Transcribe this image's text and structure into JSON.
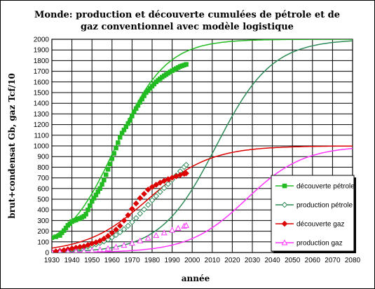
{
  "chart_data": {
    "type": "scatter",
    "title_line1": "Monde: production et découverte cumulées de pétrole et de",
    "title_line2": "gaz conventionnel avec modèle logistique",
    "xlabel": "année",
    "ylabel": "brut+condensat  Gb, gaz  Tcf/10",
    "xlim": [
      1930,
      2080
    ],
    "ylim": [
      0,
      2000
    ],
    "x_ticks": [
      1930,
      1940,
      1950,
      1960,
      1970,
      1980,
      1990,
      2000,
      2010,
      2020,
      2030,
      2040,
      2050,
      2060,
      2070,
      2080
    ],
    "y_ticks": [
      0,
      100,
      200,
      300,
      400,
      500,
      600,
      700,
      800,
      900,
      1000,
      1100,
      1200,
      1300,
      1400,
      1500,
      1600,
      1700,
      1800,
      1900,
      2000
    ],
    "grid": true,
    "legend_position": "right",
    "series": [
      {
        "name": "découverte pétrole",
        "color": "#22bb22",
        "marker": "square-filled",
        "points": [
          [
            1930,
            140
          ],
          [
            1932,
            148
          ],
          [
            1934,
            160
          ],
          [
            1935,
            185
          ],
          [
            1936,
            205
          ],
          [
            1937,
            230
          ],
          [
            1938,
            255
          ],
          [
            1939,
            270
          ],
          [
            1940,
            290
          ],
          [
            1941,
            300
          ],
          [
            1942,
            305
          ],
          [
            1943,
            315
          ],
          [
            1944,
            320
          ],
          [
            1945,
            330
          ],
          [
            1946,
            340
          ],
          [
            1947,
            360
          ],
          [
            1948,
            400
          ],
          [
            1949,
            440
          ],
          [
            1950,
            480
          ],
          [
            1951,
            510
          ],
          [
            1952,
            540
          ],
          [
            1953,
            570
          ],
          [
            1954,
            600
          ],
          [
            1955,
            640
          ],
          [
            1956,
            680
          ],
          [
            1957,
            730
          ],
          [
            1958,
            780
          ],
          [
            1959,
            830
          ],
          [
            1960,
            880
          ],
          [
            1961,
            930
          ],
          [
            1962,
            980
          ],
          [
            1963,
            1030
          ],
          [
            1964,
            1080
          ],
          [
            1965,
            1120
          ],
          [
            1966,
            1150
          ],
          [
            1967,
            1180
          ],
          [
            1968,
            1210
          ],
          [
            1969,
            1240
          ],
          [
            1970,
            1280
          ],
          [
            1971,
            1320
          ],
          [
            1972,
            1350
          ],
          [
            1973,
            1380
          ],
          [
            1974,
            1410
          ],
          [
            1975,
            1440
          ],
          [
            1976,
            1470
          ],
          [
            1977,
            1500
          ],
          [
            1978,
            1520
          ],
          [
            1979,
            1540
          ],
          [
            1980,
            1560
          ],
          [
            1981,
            1580
          ],
          [
            1982,
            1600
          ],
          [
            1983,
            1615
          ],
          [
            1984,
            1630
          ],
          [
            1985,
            1645
          ],
          [
            1986,
            1658
          ],
          [
            1987,
            1670
          ],
          [
            1988,
            1682
          ],
          [
            1989,
            1694
          ],
          [
            1990,
            1705
          ],
          [
            1991,
            1715
          ],
          [
            1992,
            1725
          ],
          [
            1993,
            1735
          ],
          [
            1994,
            1745
          ],
          [
            1995,
            1752
          ],
          [
            1996,
            1758
          ],
          [
            1997,
            1765
          ]
        ]
      },
      {
        "name": "production pétrole",
        "color": "#2e8b57",
        "marker": "diamond-open",
        "points": [
          [
            1930,
            5
          ],
          [
            1932,
            8
          ],
          [
            1934,
            12
          ],
          [
            1936,
            16
          ],
          [
            1938,
            21
          ],
          [
            1940,
            27
          ],
          [
            1942,
            33
          ],
          [
            1944,
            40
          ],
          [
            1946,
            48
          ],
          [
            1948,
            56
          ],
          [
            1950,
            66
          ],
          [
            1952,
            77
          ],
          [
            1954,
            90
          ],
          [
            1956,
            105
          ],
          [
            1958,
            122
          ],
          [
            1960,
            142
          ],
          [
            1962,
            165
          ],
          [
            1964,
            190
          ],
          [
            1966,
            218
          ],
          [
            1968,
            250
          ],
          [
            1970,
            285
          ],
          [
            1972,
            323
          ],
          [
            1974,
            365
          ],
          [
            1976,
            405
          ],
          [
            1978,
            447
          ],
          [
            1980,
            490
          ],
          [
            1982,
            530
          ],
          [
            1984,
            568
          ],
          [
            1986,
            605
          ],
          [
            1988,
            643
          ],
          [
            1990,
            683
          ],
          [
            1992,
            722
          ],
          [
            1994,
            762
          ],
          [
            1996,
            803
          ],
          [
            1997,
            822
          ]
        ]
      },
      {
        "name": "découverte gaz",
        "color": "#dd0000",
        "marker": "diamond-filled",
        "points": [
          [
            1930,
            5
          ],
          [
            1932,
            10
          ],
          [
            1934,
            15
          ],
          [
            1936,
            22
          ],
          [
            1938,
            30
          ],
          [
            1940,
            38
          ],
          [
            1942,
            45
          ],
          [
            1944,
            52
          ],
          [
            1946,
            58
          ],
          [
            1948,
            70
          ],
          [
            1950,
            85
          ],
          [
            1952,
            95
          ],
          [
            1954,
            110
          ],
          [
            1956,
            130
          ],
          [
            1958,
            155
          ],
          [
            1960,
            185
          ],
          [
            1962,
            215
          ],
          [
            1964,
            250
          ],
          [
            1966,
            300
          ],
          [
            1968,
            350
          ],
          [
            1970,
            410
          ],
          [
            1972,
            460
          ],
          [
            1974,
            510
          ],
          [
            1976,
            550
          ],
          [
            1978,
            590
          ],
          [
            1980,
            615
          ],
          [
            1982,
            635
          ],
          [
            1984,
            655
          ],
          [
            1986,
            672
          ],
          [
            1988,
            688
          ],
          [
            1990,
            702
          ],
          [
            1992,
            715
          ],
          [
            1994,
            727
          ],
          [
            1996,
            738
          ],
          [
            1997,
            743
          ]
        ]
      },
      {
        "name": "production gaz",
        "color": "#ff33ff",
        "marker": "triangle-open",
        "points": [
          [
            1930,
            2
          ],
          [
            1934,
            4
          ],
          [
            1938,
            7
          ],
          [
            1942,
            10
          ],
          [
            1946,
            14
          ],
          [
            1950,
            20
          ],
          [
            1954,
            28
          ],
          [
            1958,
            38
          ],
          [
            1962,
            52
          ],
          [
            1966,
            68
          ],
          [
            1970,
            88
          ],
          [
            1974,
            110
          ],
          [
            1978,
            135
          ],
          [
            1982,
            160
          ],
          [
            1986,
            185
          ],
          [
            1990,
            210
          ],
          [
            1993,
            228
          ],
          [
            1996,
            248
          ],
          [
            1997,
            255
          ]
        ]
      }
    ],
    "model_curves": [
      {
        "of": "découverte pétrole",
        "color": "#22bb22",
        "K": 2000,
        "k": 0.08,
        "x0": 1962
      },
      {
        "of": "production pétrole",
        "color": "#2e8b57",
        "K": 2000,
        "k": 0.072,
        "x0": 2012
      },
      {
        "of": "découverte gaz",
        "color": "#dd0000",
        "K": 1000,
        "k": 0.065,
        "x0": 1978
      },
      {
        "of": "production gaz",
        "color": "#ff33ff",
        "K": 1000,
        "k": 0.07,
        "x0": 2027
      }
    ]
  }
}
